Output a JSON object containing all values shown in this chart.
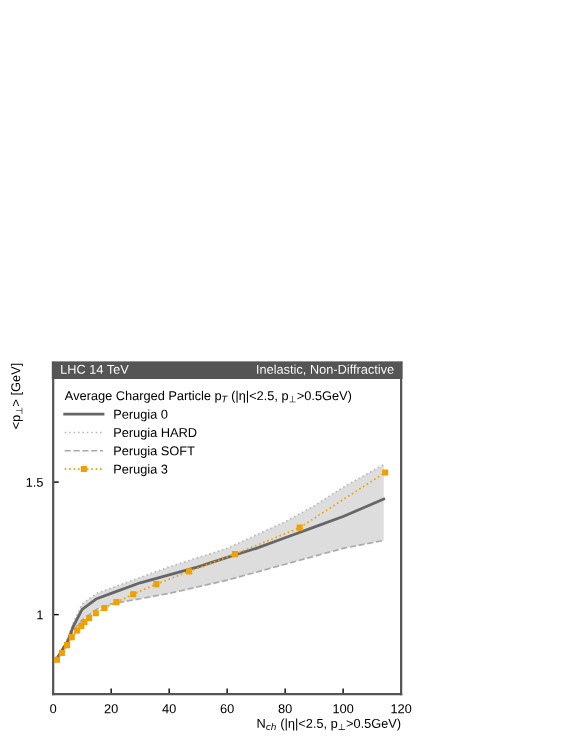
{
  "chart_data": {
    "type": "line",
    "ylabel": "<p$_{⊥}$> [GeV]",
    "xlabel": "N$_{ch}$ (|η|<2.5, p$_{⊥}$>0.5GeV)",
    "legend_title": "Average Charged Particle p$_{T}$ (|η|<2.5, p$_{⊥}$>0.5GeV)",
    "annotations": [
      "LHC 14 TeV",
      "Inelastic, Non-Diffractive"
    ],
    "x": [
      1,
      3,
      5,
      7,
      10,
      15,
      20,
      30,
      40,
      50,
      60,
      70,
      80,
      90,
      100,
      114
    ],
    "series": [
      {
        "name": "Perugia 0",
        "color": "#666666",
        "values": [
          0.83,
          0.865,
          0.9,
          0.957,
          1.02,
          1.06,
          1.08,
          1.12,
          1.15,
          1.18,
          1.216,
          1.25,
          1.29,
          1.33,
          1.37,
          1.436
        ],
        "lower": [
          0.83,
          0.86,
          0.89,
          0.94,
          0.98,
          1.02,
          1.04,
          1.06,
          1.08,
          1.105,
          1.13,
          1.16,
          1.19,
          1.22,
          1.25,
          1.28
        ],
        "upper": [
          0.83,
          0.87,
          0.91,
          0.97,
          1.04,
          1.08,
          1.1,
          1.14,
          1.18,
          1.215,
          1.25,
          1.3,
          1.35,
          1.41,
          1.48,
          1.566
        ]
      },
      {
        "name": "Perugia HARD",
        "color": "#bbbbbb",
        "line_style": "dotted",
        "marker": "none",
        "values": [
          0.83,
          0.87,
          0.91,
          0.97,
          1.04,
          1.08,
          1.1,
          1.14,
          1.18,
          1.215,
          1.25,
          1.3,
          1.35,
          1.41,
          1.48,
          1.566
        ]
      },
      {
        "name": "Perugia SOFT",
        "color": "#aaaaaa",
        "line_style": "dashed",
        "marker": "none",
        "values": [
          0.83,
          0.86,
          0.89,
          0.94,
          0.98,
          1.02,
          1.04,
          1.06,
          1.08,
          1.105,
          1.13,
          1.16,
          1.19,
          1.22,
          1.25,
          1.28
        ]
      },
      {
        "name": "Perugia 3",
        "color": "#f0a000",
        "line_style": "dotted",
        "marker": "square",
        "x": [
          1.3,
          3,
          4.8,
          6.4,
          8.3,
          9.7,
          10.8,
          12.4,
          14.7,
          17.7,
          21.8,
          27.6,
          35.6,
          46.9,
          62.7,
          85,
          114.5
        ],
        "values": [
          0.83,
          0.855,
          0.885,
          0.915,
          0.94,
          0.957,
          0.972,
          0.987,
          1.005,
          1.025,
          1.047,
          1.077,
          1.115,
          1.163,
          1.228,
          1.328,
          1.536
        ]
      }
    ],
    "xlim": [
      0,
      120
    ],
    "xticks": [
      0,
      20,
      40,
      60,
      80,
      100,
      120
    ],
    "ylim": [
      0.7,
      1.95
    ],
    "yticks": [
      1,
      1.5
    ],
    "grid": false,
    "legend": "top left"
  }
}
